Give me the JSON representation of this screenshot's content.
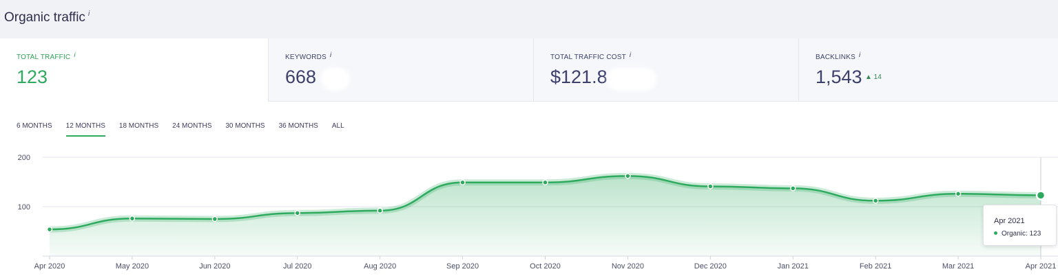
{
  "section": {
    "title": "Organic traffic",
    "info_icon": "i"
  },
  "cards": [
    {
      "label": "TOTAL TRAFFIC",
      "info": "i",
      "value": "123"
    },
    {
      "label": "KEYWORDS",
      "info": "i",
      "value": "668"
    },
    {
      "label": "TOTAL TRAFFIC COST",
      "info": "i",
      "value": "$121.8"
    },
    {
      "label": "BACKLINKS",
      "info": "i",
      "value": "1,543",
      "delta_icon": "up-triangle-icon",
      "delta": "▲ 14"
    }
  ],
  "tabs": [
    "6 MONTHS",
    "12 MONTHS",
    "18 MONTHS",
    "24 MONTHS",
    "30 MONTHS",
    "36 MONTHS",
    "ALL"
  ],
  "active_tab": "12 MONTHS",
  "chart_data": {
    "type": "area",
    "x": [
      "Apr 2020",
      "May 2020",
      "Jun 2020",
      "Jul 2020",
      "Aug 2020",
      "Sep 2020",
      "Oct 2020",
      "Nov 2020",
      "Dec 2020",
      "Jan 2021",
      "Feb 2021",
      "Mar 2021",
      "Apr 2021"
    ],
    "series": [
      {
        "name": "Organic",
        "values": [
          54,
          76,
          75,
          87,
          92,
          149,
          149,
          162,
          141,
          137,
          112,
          126,
          123
        ]
      }
    ],
    "y_ticks": [
      "100",
      "200"
    ],
    "ylim": [
      0,
      200
    ],
    "grid": true,
    "color": "#2eaa5f"
  },
  "tooltip": {
    "date": "Apr 2021",
    "series": "Organic",
    "value": "123",
    "text": "Organic: 123"
  }
}
